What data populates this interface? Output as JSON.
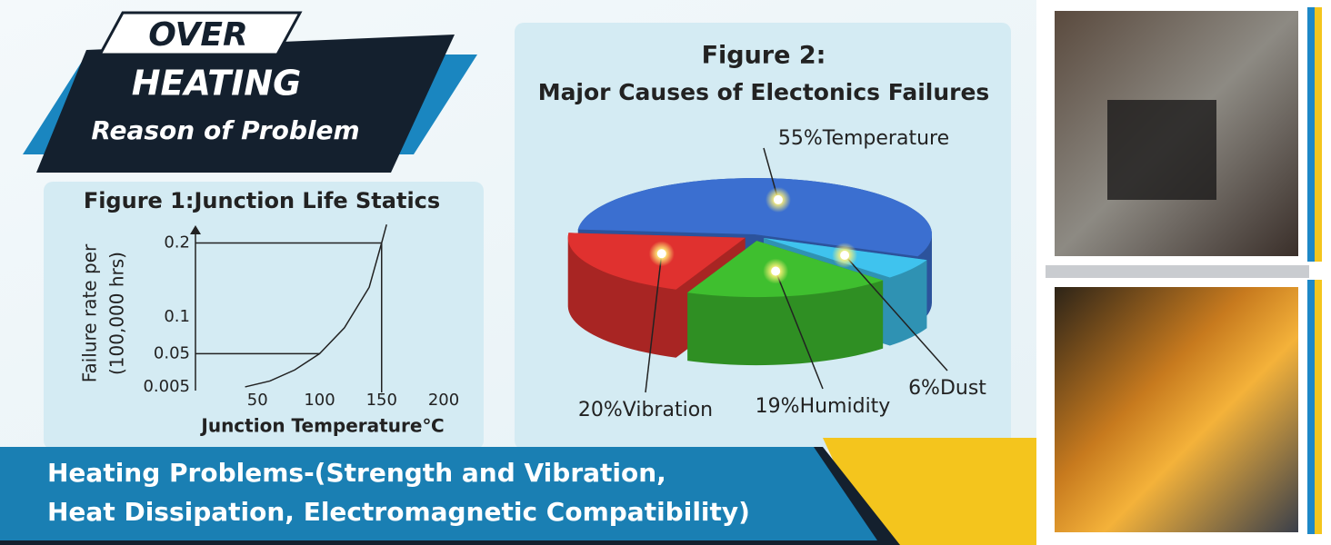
{
  "badge": {
    "line1": "OVER",
    "line2": "HEATING",
    "line3": "Reason of Problem"
  },
  "banner": {
    "line1": "Heating Problems-(Strength and Vibration,",
    "line2": "Heat Dissipation, Electromagnetic Compatibility)"
  },
  "chart_data": [
    {
      "type": "line",
      "title": "Figure 1:Junction Life Statics",
      "ylabel": [
        "Failure rate per",
        "(100,000 hrs)"
      ],
      "xlabel": "Junction Temperature℃",
      "x": [
        40,
        60,
        80,
        100,
        120,
        140,
        150,
        154
      ],
      "values": [
        0.005,
        0.013,
        0.028,
        0.05,
        0.085,
        0.14,
        0.2,
        0.225
      ],
      "color": "#222222",
      "xlim": [
        0,
        200
      ],
      "ylim": [
        0,
        0.24
      ],
      "xticks": [
        50,
        100,
        150,
        200
      ],
      "yticks": [
        0.005,
        0.05,
        0.1,
        0.2
      ]
    },
    {
      "type": "pie",
      "title": "Figure 2:",
      "subtitle": "Major Causes of Electonics Failures",
      "values": [
        55,
        6,
        19,
        20
      ],
      "value_labels": [
        "55%Temperature",
        "6%Dust",
        "19%Humidity",
        "20%Vibration"
      ],
      "colors": [
        "#3b6fd0",
        "#3fc3ee",
        "#3fbf2f",
        "#e0312f"
      ]
    }
  ]
}
